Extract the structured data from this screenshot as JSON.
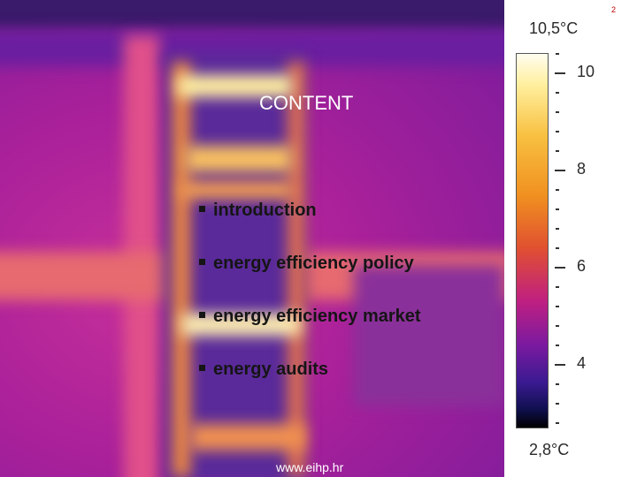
{
  "slide_number": "2",
  "title": "CONTENT",
  "bullets": [
    "introduction",
    "energy efficiency policy",
    "energy efficiency market",
    "energy audits"
  ],
  "footer": "www.eihp.hr",
  "scale": {
    "max_label": "10,5°C",
    "min_label": "2,8°C",
    "ticks": [
      10,
      8,
      6,
      4
    ]
  }
}
